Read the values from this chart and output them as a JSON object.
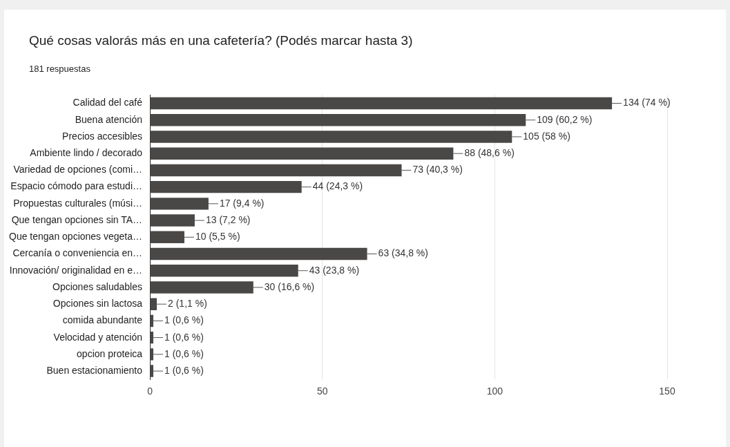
{
  "chart_data": {
    "type": "bar",
    "orientation": "horizontal",
    "title": "Qué cosas valorás más en una cafetería? (Podés marcar hasta 3)",
    "subtitle": "181 respuestas",
    "categories": [
      "Calidad del café",
      "Buena atención",
      "Precios accesibles",
      "Ambiente lindo / decorado",
      "Variedad de opciones (comi…",
      "Espacio cómodo para estudi…",
      "Propuestas culturales (músi…",
      "Que tengan opciones sin TA…",
      "Que tengan opciones vegeta…",
      "Cercanía o conveniencia en…",
      "Innovación/ originalidad en e…",
      "Opciones saludables",
      "Opciones sin lactosa",
      "comida abundante",
      "Velocidad y atención",
      "opcion proteica",
      "Buen estacionamiento"
    ],
    "values": [
      134,
      109,
      105,
      88,
      73,
      44,
      17,
      13,
      10,
      63,
      43,
      30,
      2,
      1,
      1,
      1,
      1
    ],
    "value_labels": [
      "134 (74 %)",
      "109 (60,2 %)",
      "105 (58 %)",
      "88 (48,6 %)",
      "73 (40,3 %)",
      "44 (24,3 %)",
      "17 (9,4 %)",
      "13 (7,2 %)",
      "10 (5,5 %)",
      "63 (34,8 %)",
      "43 (23,8 %)",
      "30 (16,6 %)",
      "2 (1,1 %)",
      "1 (0,6 %)",
      "1 (0,6 %)",
      "1 (0,6 %)",
      "1 (0,6 %)"
    ],
    "color": "#4a4846",
    "xlim": [
      0,
      150
    ],
    "xticks": [
      0,
      50,
      100,
      150
    ],
    "grid": "x",
    "legend": false
  }
}
